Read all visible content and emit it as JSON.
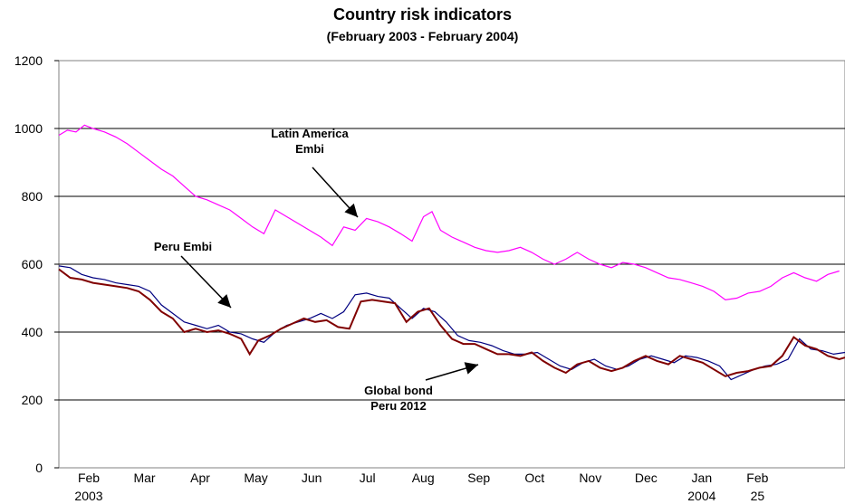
{
  "chart_data": {
    "type": "line",
    "title": "Country risk indicators",
    "subtitle": "(February 2003 - February 2004)",
    "ylim": [
      0,
      1200
    ],
    "yticks": [
      0,
      200,
      400,
      600,
      800,
      1000,
      1200
    ],
    "grid": true,
    "x_tick_labels": [
      {
        "label": "Feb",
        "sublabel": "2003"
      },
      {
        "label": "Mar",
        "sublabel": ""
      },
      {
        "label": "Apr",
        "sublabel": ""
      },
      {
        "label": "May",
        "sublabel": ""
      },
      {
        "label": "Jun",
        "sublabel": ""
      },
      {
        "label": "Jul",
        "sublabel": ""
      },
      {
        "label": "Aug",
        "sublabel": ""
      },
      {
        "label": "Sep",
        "sublabel": ""
      },
      {
        "label": "Oct",
        "sublabel": ""
      },
      {
        "label": "Nov",
        "sublabel": ""
      },
      {
        "label": "Dec",
        "sublabel": ""
      },
      {
        "label": "Jan",
        "sublabel": "2004"
      },
      {
        "label": "Feb",
        "sublabel": "25"
      }
    ],
    "series": [
      {
        "name": "Latin America Embi",
        "color": "#ff00ff",
        "points": [
          [
            0,
            980
          ],
          [
            0.15,
            995
          ],
          [
            0.3,
            990
          ],
          [
            0.45,
            1010
          ],
          [
            0.6,
            1000
          ],
          [
            0.8,
            990
          ],
          [
            1.0,
            975
          ],
          [
            1.2,
            955
          ],
          [
            1.4,
            930
          ],
          [
            1.6,
            905
          ],
          [
            1.8,
            880
          ],
          [
            2.0,
            860
          ],
          [
            2.2,
            830
          ],
          [
            2.4,
            800
          ],
          [
            2.6,
            790
          ],
          [
            2.8,
            775
          ],
          [
            3.0,
            760
          ],
          [
            3.2,
            735
          ],
          [
            3.4,
            710
          ],
          [
            3.6,
            690
          ],
          [
            3.8,
            760
          ],
          [
            4.0,
            740
          ],
          [
            4.2,
            720
          ],
          [
            4.4,
            700
          ],
          [
            4.6,
            680
          ],
          [
            4.8,
            655
          ],
          [
            5.0,
            710
          ],
          [
            5.2,
            700
          ],
          [
            5.4,
            735
          ],
          [
            5.6,
            725
          ],
          [
            5.8,
            710
          ],
          [
            6.0,
            690
          ],
          [
            6.2,
            668
          ],
          [
            6.4,
            740
          ],
          [
            6.55,
            755
          ],
          [
            6.7,
            700
          ],
          [
            6.9,
            680
          ],
          [
            7.1,
            665
          ],
          [
            7.3,
            650
          ],
          [
            7.5,
            640
          ],
          [
            7.7,
            635
          ],
          [
            7.9,
            640
          ],
          [
            8.1,
            650
          ],
          [
            8.3,
            635
          ],
          [
            8.5,
            615
          ],
          [
            8.7,
            600
          ],
          [
            8.9,
            615
          ],
          [
            9.1,
            635
          ],
          [
            9.3,
            615
          ],
          [
            9.5,
            600
          ],
          [
            9.7,
            590
          ],
          [
            9.9,
            605
          ],
          [
            10.1,
            600
          ],
          [
            10.3,
            590
          ],
          [
            10.5,
            575
          ],
          [
            10.7,
            560
          ],
          [
            10.9,
            555
          ],
          [
            11.1,
            545
          ],
          [
            11.3,
            535
          ],
          [
            11.5,
            520
          ],
          [
            11.7,
            495
          ],
          [
            11.9,
            500
          ],
          [
            12.1,
            515
          ],
          [
            12.3,
            520
          ],
          [
            12.5,
            535
          ],
          [
            12.7,
            560
          ],
          [
            12.9,
            575
          ],
          [
            13.1,
            560
          ],
          [
            13.3,
            550
          ],
          [
            13.5,
            570
          ],
          [
            13.7,
            580
          ]
        ]
      },
      {
        "name": "Peru Embi",
        "color": "#000080",
        "points": [
          [
            0,
            595
          ],
          [
            0.2,
            590
          ],
          [
            0.4,
            570
          ],
          [
            0.6,
            560
          ],
          [
            0.8,
            555
          ],
          [
            1.0,
            545
          ],
          [
            1.2,
            540
          ],
          [
            1.4,
            535
          ],
          [
            1.6,
            520
          ],
          [
            1.8,
            480
          ],
          [
            2.0,
            455
          ],
          [
            2.2,
            430
          ],
          [
            2.4,
            420
          ],
          [
            2.6,
            410
          ],
          [
            2.8,
            420
          ],
          [
            3.0,
            400
          ],
          [
            3.2,
            395
          ],
          [
            3.4,
            380
          ],
          [
            3.6,
            370
          ],
          [
            3.8,
            400
          ],
          [
            4.0,
            420
          ],
          [
            4.2,
            430
          ],
          [
            4.4,
            440
          ],
          [
            4.6,
            455
          ],
          [
            4.8,
            440
          ],
          [
            5.0,
            460
          ],
          [
            5.2,
            510
          ],
          [
            5.4,
            515
          ],
          [
            5.6,
            505
          ],
          [
            5.8,
            500
          ],
          [
            6.0,
            470
          ],
          [
            6.2,
            440
          ],
          [
            6.4,
            470
          ],
          [
            6.6,
            460
          ],
          [
            6.8,
            430
          ],
          [
            7.0,
            390
          ],
          [
            7.2,
            375
          ],
          [
            7.4,
            370
          ],
          [
            7.6,
            360
          ],
          [
            7.8,
            345
          ],
          [
            8.0,
            335
          ],
          [
            8.2,
            335
          ],
          [
            8.4,
            340
          ],
          [
            8.6,
            320
          ],
          [
            8.8,
            300
          ],
          [
            9.0,
            290
          ],
          [
            9.2,
            310
          ],
          [
            9.4,
            320
          ],
          [
            9.6,
            300
          ],
          [
            9.8,
            290
          ],
          [
            10.0,
            300
          ],
          [
            10.2,
            320
          ],
          [
            10.4,
            330
          ],
          [
            10.6,
            320
          ],
          [
            10.8,
            310
          ],
          [
            11.0,
            330
          ],
          [
            11.2,
            325
          ],
          [
            11.4,
            315
          ],
          [
            11.6,
            300
          ],
          [
            11.8,
            260
          ],
          [
            12.0,
            275
          ],
          [
            12.2,
            290
          ],
          [
            12.4,
            300
          ],
          [
            12.6,
            305
          ],
          [
            12.8,
            320
          ],
          [
            13.0,
            380
          ],
          [
            13.2,
            350
          ],
          [
            13.4,
            345
          ],
          [
            13.6,
            335
          ],
          [
            13.8,
            340
          ]
        ]
      },
      {
        "name": "Global bond Peru 2012",
        "color": "#800000",
        "points": [
          [
            0,
            585
          ],
          [
            0.2,
            560
          ],
          [
            0.4,
            555
          ],
          [
            0.6,
            545
          ],
          [
            0.8,
            540
          ],
          [
            1.0,
            535
          ],
          [
            1.2,
            530
          ],
          [
            1.4,
            520
          ],
          [
            1.6,
            495
          ],
          [
            1.8,
            460
          ],
          [
            2.0,
            440
          ],
          [
            2.2,
            400
          ],
          [
            2.4,
            410
          ],
          [
            2.6,
            400
          ],
          [
            2.8,
            405
          ],
          [
            3.0,
            395
          ],
          [
            3.2,
            380
          ],
          [
            3.35,
            335
          ],
          [
            3.5,
            375
          ],
          [
            3.7,
            390
          ],
          [
            3.9,
            410
          ],
          [
            4.1,
            425
          ],
          [
            4.3,
            440
          ],
          [
            4.5,
            430
          ],
          [
            4.7,
            435
          ],
          [
            4.9,
            415
          ],
          [
            5.1,
            410
          ],
          [
            5.3,
            490
          ],
          [
            5.5,
            495
          ],
          [
            5.7,
            490
          ],
          [
            5.9,
            485
          ],
          [
            6.1,
            430
          ],
          [
            6.3,
            460
          ],
          [
            6.5,
            470
          ],
          [
            6.7,
            420
          ],
          [
            6.9,
            380
          ],
          [
            7.1,
            365
          ],
          [
            7.3,
            365
          ],
          [
            7.5,
            350
          ],
          [
            7.7,
            335
          ],
          [
            7.9,
            335
          ],
          [
            8.1,
            330
          ],
          [
            8.3,
            340
          ],
          [
            8.5,
            315
          ],
          [
            8.7,
            295
          ],
          [
            8.9,
            280
          ],
          [
            9.1,
            305
          ],
          [
            9.3,
            315
          ],
          [
            9.5,
            295
          ],
          [
            9.7,
            285
          ],
          [
            9.9,
            295
          ],
          [
            10.1,
            315
          ],
          [
            10.3,
            330
          ],
          [
            10.5,
            315
          ],
          [
            10.7,
            305
          ],
          [
            10.9,
            330
          ],
          [
            11.1,
            320
          ],
          [
            11.3,
            310
          ],
          [
            11.5,
            290
          ],
          [
            11.7,
            270
          ],
          [
            11.9,
            280
          ],
          [
            12.1,
            285
          ],
          [
            12.3,
            295
          ],
          [
            12.5,
            300
          ],
          [
            12.7,
            330
          ],
          [
            12.9,
            385
          ],
          [
            13.1,
            360
          ],
          [
            13.3,
            350
          ],
          [
            13.5,
            330
          ],
          [
            13.7,
            320
          ],
          [
            13.8,
            325
          ]
        ]
      }
    ],
    "annotations": [
      {
        "lines": [
          "Latin America",
          "Embi"
        ]
      },
      {
        "lines": [
          "Peru  Embi"
        ]
      },
      {
        "lines": [
          "Global bond",
          "Peru 2012"
        ]
      }
    ]
  }
}
